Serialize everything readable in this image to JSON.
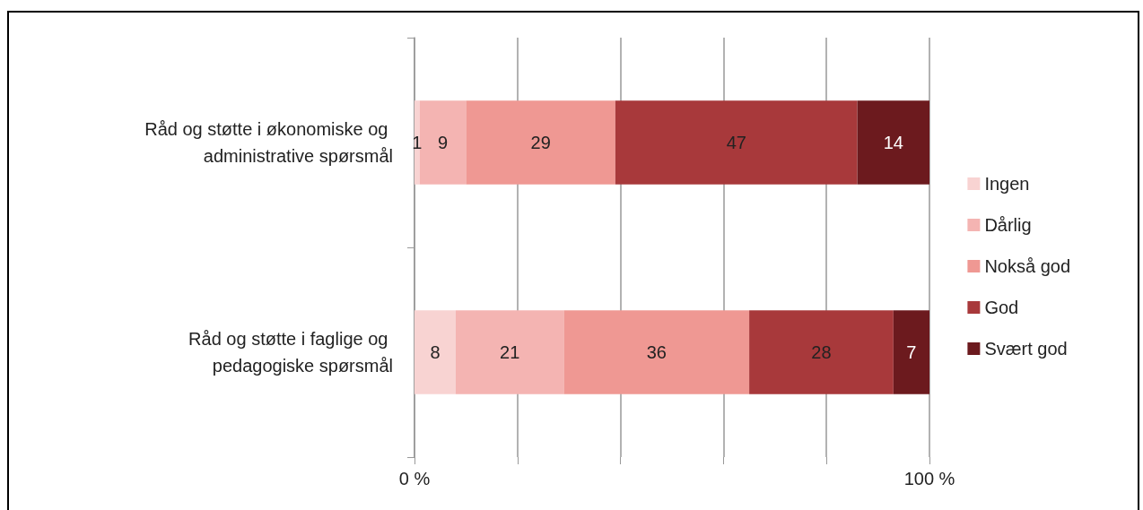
{
  "chart_data": {
    "type": "bar",
    "orientation": "horizontal",
    "stacked": true,
    "categories": [
      "Råd og støtte i økonomiske og administrative spørsmål",
      "Råd og støtte i faglige og pedagogiske spørsmål"
    ],
    "series": [
      {
        "name": "Ingen",
        "color": "#f8d3d2",
        "values": [
          1,
          8
        ]
      },
      {
        "name": "Dårlig",
        "color": "#f4b4b2",
        "values": [
          9,
          21
        ]
      },
      {
        "name": "Nokså god",
        "color": "#ef9893",
        "values": [
          29,
          36
        ]
      },
      {
        "name": "God",
        "color": "#a8393b",
        "values": [
          47,
          28
        ]
      },
      {
        "name": "Svært god",
        "color": "#6c1a1e",
        "values": [
          14,
          7
        ]
      }
    ],
    "xlim": [
      0,
      100
    ],
    "xticks": [
      {
        "value": 0,
        "label": "0 %"
      },
      {
        "value": 20,
        "label": null
      },
      {
        "value": 40,
        "label": null
      },
      {
        "value": 60,
        "label": null
      },
      {
        "value": 80,
        "label": null
      },
      {
        "value": 100,
        "label": "100 %"
      }
    ],
    "grid": "x",
    "legend": "right",
    "data_labels": true
  }
}
